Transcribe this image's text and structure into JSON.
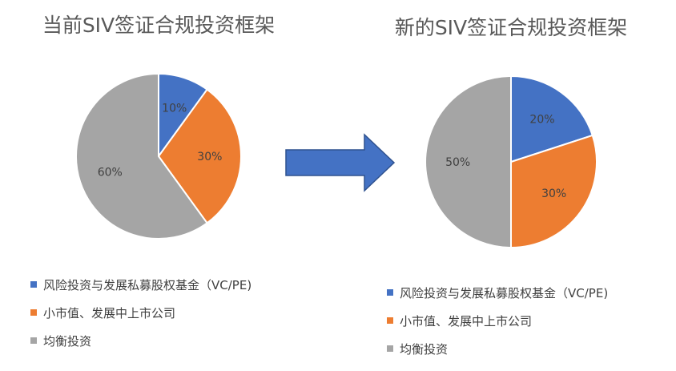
{
  "colors": {
    "vc_pe": "#4472C4",
    "small_cap": "#ED7D31",
    "balanced": "#A5A5A5",
    "arrow_fill": "#4472C4",
    "arrow_stroke": "#2F528F",
    "slice_border": "#FFFFFF"
  },
  "arrow": {
    "icon": "right-arrow-icon"
  },
  "chart_data": [
    {
      "type": "pie",
      "title": "当前SIV签证合规投资框架",
      "categories": [
        "风险投资与发展私募股权基金（VC/PE)",
        "小市值、发展中上市公司",
        "均衡投资"
      ],
      "values": [
        10,
        30,
        60
      ],
      "data_labels": [
        "10%",
        "30%",
        "60%"
      ],
      "colors": [
        "#4472C4",
        "#ED7D31",
        "#A5A5A5"
      ],
      "legend_position": "bottom"
    },
    {
      "type": "pie",
      "title": "新的SIV签证合规投资框架",
      "categories": [
        "风险投资与发展私募股权基金（VC/PE)",
        "小市值、发展中上市公司",
        "均衡投资"
      ],
      "values": [
        20,
        30,
        50
      ],
      "data_labels": [
        "20%",
        "30%",
        "50%"
      ],
      "colors": [
        "#4472C4",
        "#ED7D31",
        "#A5A5A5"
      ],
      "legend_position": "bottom"
    }
  ]
}
